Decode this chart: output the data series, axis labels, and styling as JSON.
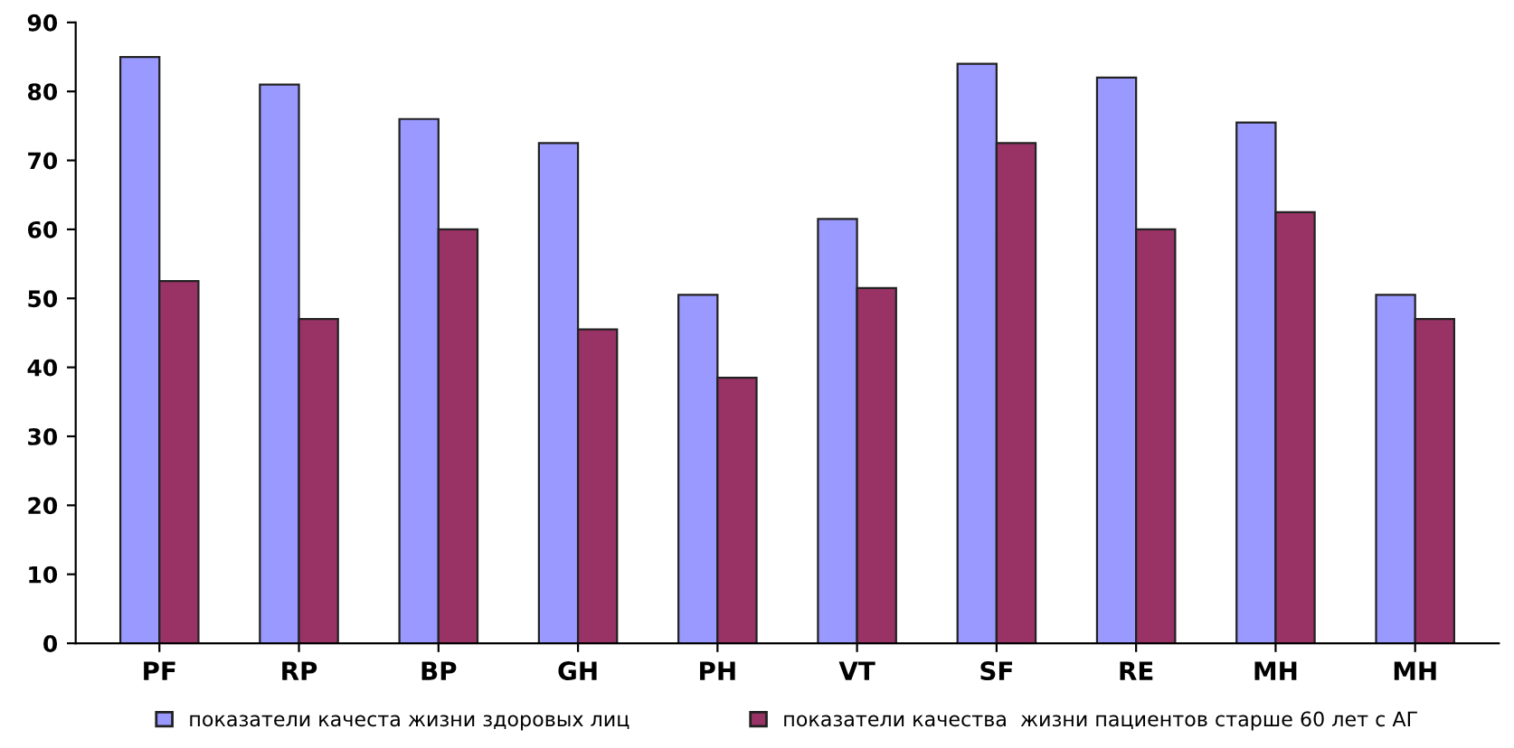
{
  "chart_data": {
    "type": "bar",
    "categories": [
      "PF",
      "RP",
      "BP",
      "GH",
      "PH",
      "VT",
      "SF",
      "RE",
      "MH",
      "MH"
    ],
    "series": [
      {
        "name": "показатели качеста жизни здоровых лиц",
        "color": "#9999ff",
        "values": [
          85,
          81,
          76,
          72.5,
          50.5,
          61.5,
          84,
          82,
          75.5,
          50.5
        ]
      },
      {
        "name": "показатели качества  жизни пациентов старше 60 лет с АГ",
        "color": "#993366",
        "values": [
          52.5,
          47,
          60,
          45.5,
          38.5,
          51.5,
          72.5,
          60,
          62.5,
          47
        ]
      }
    ],
    "ylim": [
      0,
      90
    ],
    "yticks": [
      0,
      10,
      20,
      30,
      40,
      50,
      60,
      70,
      80,
      90
    ],
    "grid": false,
    "legend": "bottom"
  }
}
